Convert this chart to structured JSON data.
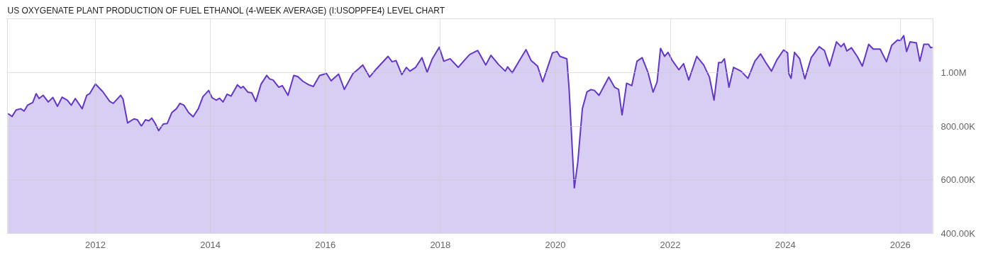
{
  "chart_data": {
    "type": "area",
    "title": "US OXYGENATE PLANT PRODUCTION OF FUEL ETHANOL (4-WEEK AVERAGE) (I:USOPPFE4) LEVEL CHART",
    "x": [
      2010.48,
      2010.55,
      2010.62,
      2010.7,
      2010.76,
      2010.82,
      2010.91,
      2010.97,
      2011.02,
      2011.09,
      2011.18,
      2011.26,
      2011.34,
      2011.42,
      2011.51,
      2011.58,
      2011.65,
      2011.77,
      2011.85,
      2011.9,
      2012.0,
      2012.13,
      2012.25,
      2012.31,
      2012.44,
      2012.48,
      2012.56,
      2012.67,
      2012.73,
      2012.8,
      2012.87,
      2012.93,
      2012.98,
      2013.04,
      2013.1,
      2013.18,
      2013.25,
      2013.33,
      2013.41,
      2013.47,
      2013.54,
      2013.62,
      2013.7,
      2013.79,
      2013.87,
      2013.97,
      2014.03,
      2014.1,
      2014.16,
      2014.22,
      2014.29,
      2014.36,
      2014.47,
      2014.53,
      2014.57,
      2014.65,
      2014.72,
      2014.79,
      2014.88,
      2014.98,
      2015.03,
      2015.09,
      2015.19,
      2015.25,
      2015.35,
      2015.45,
      2015.52,
      2015.61,
      2015.71,
      2015.79,
      2015.9,
      2016.02,
      2016.1,
      2016.23,
      2016.33,
      2016.48,
      2016.58,
      2016.65,
      2016.77,
      2016.89,
      2017.09,
      2017.16,
      2017.23,
      2017.33,
      2017.41,
      2017.47,
      2017.57,
      2017.68,
      2017.77,
      2017.86,
      2017.98,
      2018.06,
      2018.17,
      2018.31,
      2018.42,
      2018.51,
      2018.65,
      2018.79,
      2018.88,
      2019.01,
      2019.13,
      2019.17,
      2019.25,
      2019.38,
      2019.49,
      2019.58,
      2019.69,
      2019.78,
      2019.95,
      2020.03,
      2020.08,
      2020.2,
      2020.24,
      2020.33,
      2020.39,
      2020.47,
      2020.55,
      2020.62,
      2020.68,
      2020.76,
      2020.93,
      2021.03,
      2021.1,
      2021.16,
      2021.24,
      2021.33,
      2021.42,
      2021.51,
      2021.61,
      2021.7,
      2021.77,
      2021.83,
      2021.9,
      2021.96,
      2022.03,
      2022.15,
      2022.23,
      2022.32,
      2022.46,
      2022.58,
      2022.68,
      2022.76,
      2022.84,
      2022.89,
      2022.94,
      2023.02,
      2023.1,
      2023.23,
      2023.35,
      2023.47,
      2023.57,
      2023.66,
      2023.76,
      2023.85,
      2023.97,
      2024.04,
      2024.06,
      2024.1,
      2024.16,
      2024.25,
      2024.34,
      2024.45,
      2024.59,
      2024.68,
      2024.77,
      2024.89,
      2024.97,
      2025.02,
      2025.07,
      2025.15,
      2025.25,
      2025.34,
      2025.45,
      2025.53,
      2025.65,
      2025.76,
      2025.85,
      2025.95,
      2026.0,
      2026.06,
      2026.11,
      2026.17,
      2026.28,
      2026.34,
      2026.41,
      2026.49,
      2026.53,
      2026.56
    ],
    "series": [
      {
        "color": "#6336cc",
        "values": [
          847000,
          836000,
          860000,
          865000,
          856000,
          878000,
          888000,
          921000,
          903000,
          915000,
          890000,
          907000,
          874000,
          908000,
          897000,
          878000,
          903000,
          865000,
          915000,
          921000,
          957000,
          928000,
          892000,
          885000,
          915000,
          901000,
          812000,
          827000,
          824000,
          800000,
          824000,
          820000,
          830000,
          810000,
          783000,
          808000,
          810000,
          851000,
          865000,
          885000,
          878000,
          851000,
          835000,
          865000,
          910000,
          933000,
          906000,
          897000,
          904000,
          890000,
          919000,
          912000,
          954000,
          942000,
          948000,
          927000,
          924000,
          892000,
          956000,
          989000,
          976000,
          972000,
          945000,
          951000,
          915000,
          989000,
          985000,
          967000,
          954000,
          948000,
          989000,
          996000,
          969000,
          994000,
          937000,
          996000,
          1014000,
          1028000,
          983000,
          1014000,
          1060000,
          1040000,
          1044000,
          992000,
          1019000,
          1005000,
          1019000,
          1055000,
          1001000,
          1051000,
          1094000,
          1042000,
          1051000,
          1019000,
          1046000,
          1067000,
          1082000,
          1028000,
          1064000,
          1030000,
          1005000,
          1021000,
          999000,
          1046000,
          1085000,
          1044000,
          1024000,
          965000,
          1073000,
          1078000,
          1060000,
          1051000,
          937000,
          570000,
          665000,
          865000,
          928000,
          936000,
          933000,
          915000,
          983000,
          945000,
          937000,
          842000,
          960000,
          951000,
          1042000,
          1055000,
          1001000,
          927000,
          965000,
          1090000,
          1060000,
          1075000,
          1046000,
          1010000,
          1033000,
          972000,
          1060000,
          1028000,
          983000,
          897000,
          1037000,
          1037000,
          1051000,
          945000,
          1019000,
          1005000,
          978000,
          1042000,
          1069000,
          1037000,
          1005000,
          1046000,
          1084000,
          1073000,
          996000,
          978000,
          1075000,
          1051000,
          976000,
          1055000,
          1096000,
          1082000,
          1024000,
          1114000,
          1096000,
          1108000,
          1080000,
          1092000,
          1060000,
          1024000,
          1105000,
          1087000,
          1087000,
          1040000,
          1101000,
          1121000,
          1119000,
          1137000,
          1078000,
          1114000,
          1110000,
          1042000,
          1105000,
          1105000,
          1092000,
          1094000
        ]
      }
    ],
    "xlim": [
      2010.47,
      2026.57
    ],
    "xticks": [
      2012,
      2014,
      2016,
      2018,
      2020,
      2022,
      2024,
      2026
    ],
    "ylim": [
      400000,
      1200000
    ],
    "yticks": [
      {
        "value": 400000,
        "label": "400.00K"
      },
      {
        "value": 600000,
        "label": "600.00K"
      },
      {
        "value": 800000,
        "label": "800.00K"
      },
      {
        "value": 1000000,
        "label": "1.00M"
      }
    ],
    "grid": true
  }
}
